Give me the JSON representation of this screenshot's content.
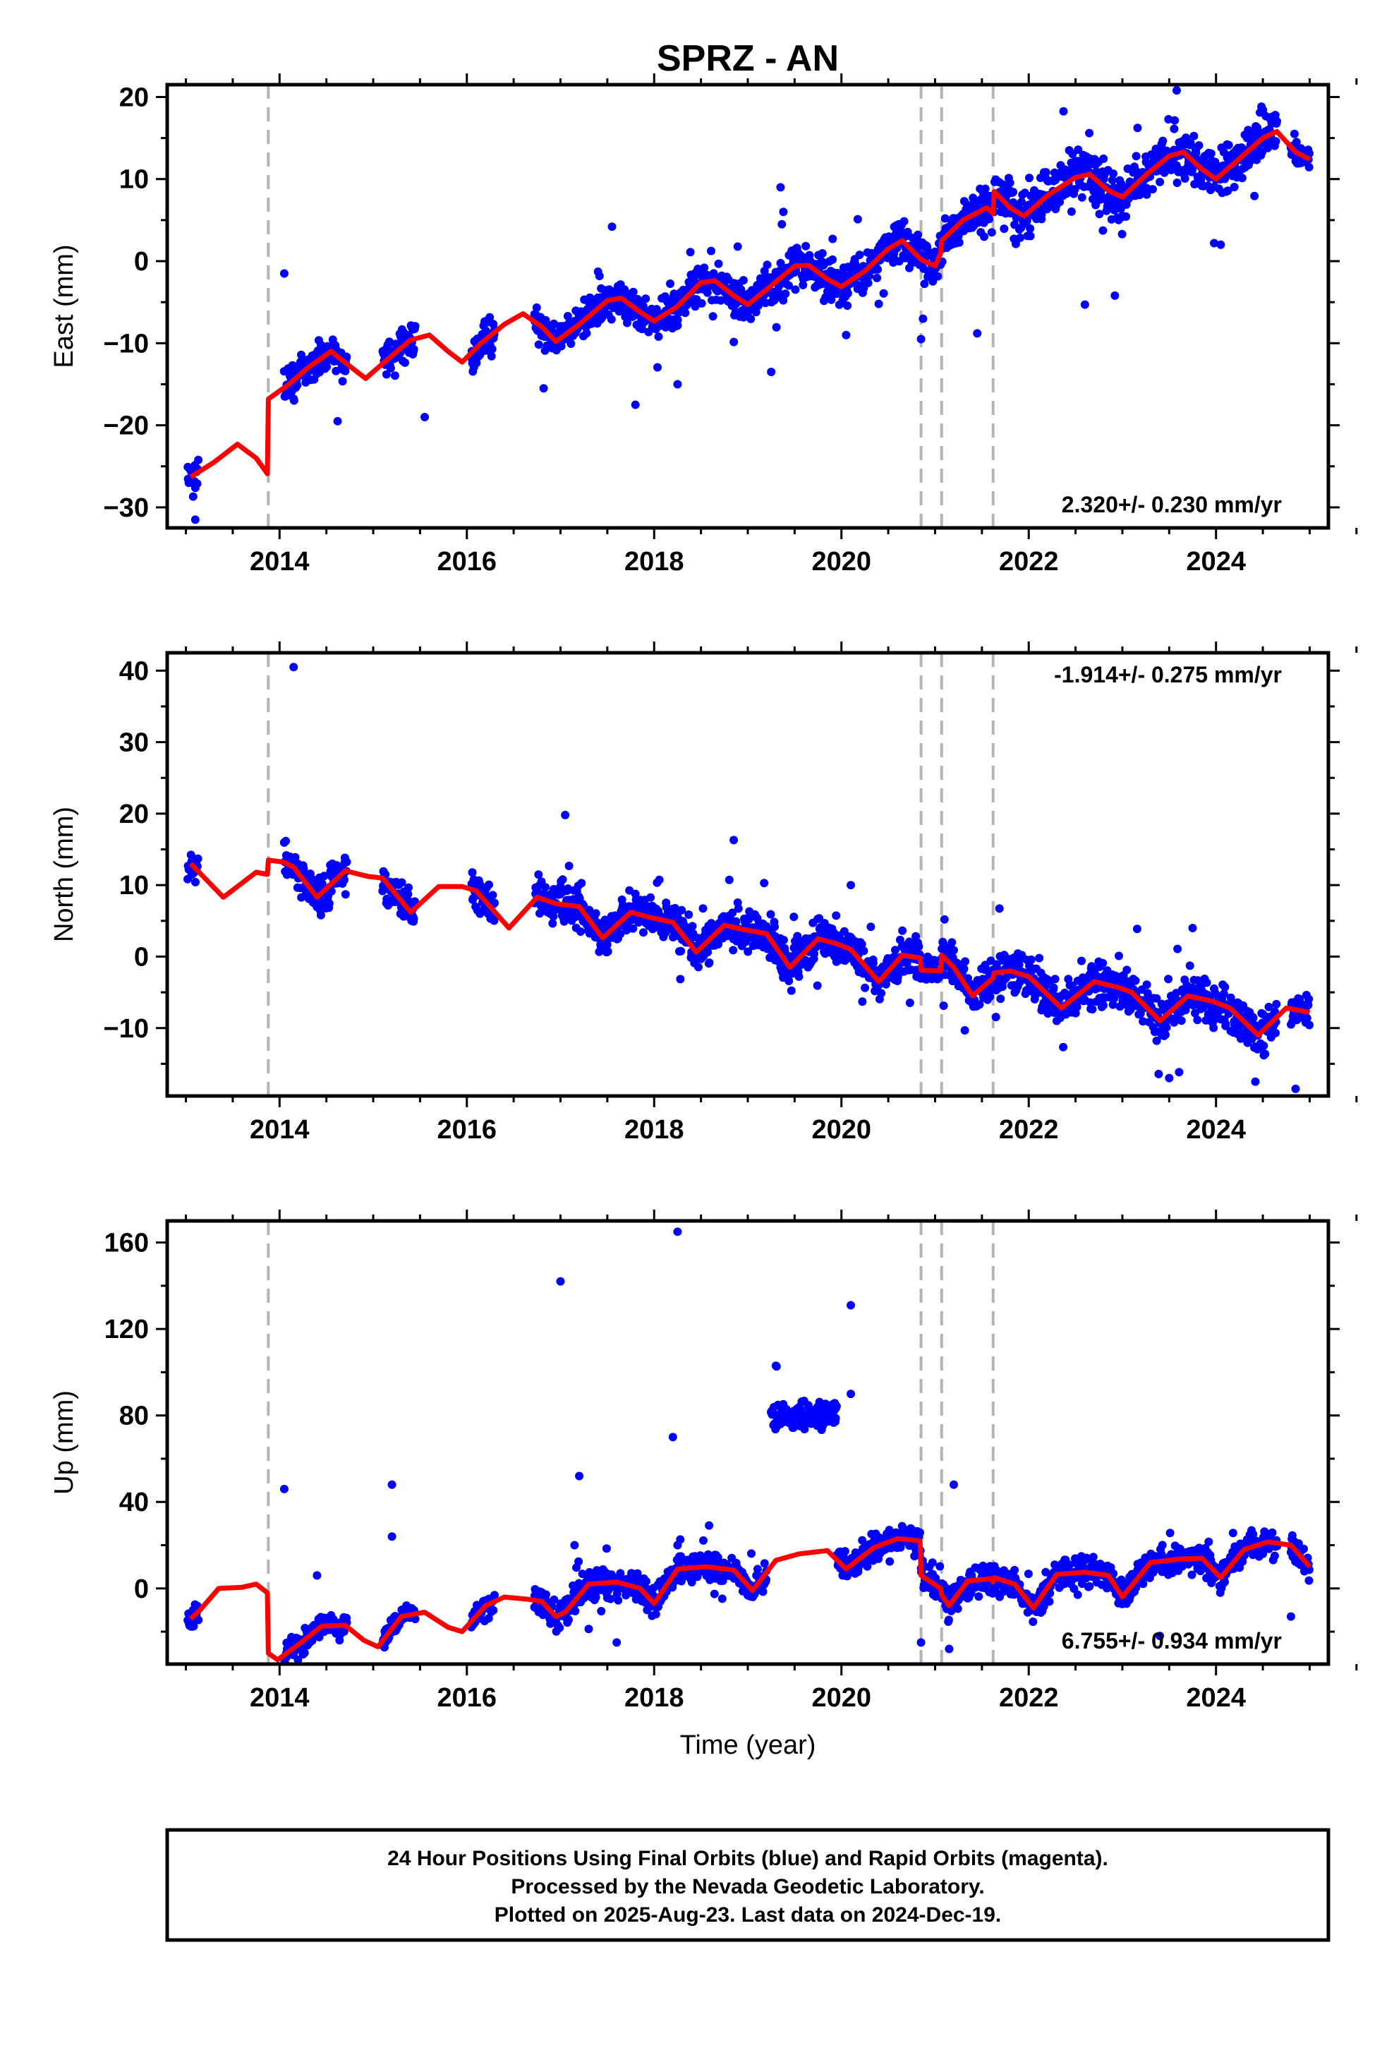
{
  "title": "SPRZ - AN",
  "xlabel": "Time (year)",
  "footer": [
    "24 Hour Positions Using Final Orbits (blue) and Rapid Orbits (magenta).",
    "Processed by the Nevada Geodetic Laboratory.",
    "Plotted on 2025-Aug-23. Last data on 2024-Dec-19."
  ],
  "colors": {
    "data": "#0000ff",
    "model": "#ff0000",
    "steps": "#b4b4b4",
    "frame": "#000000"
  },
  "chart_data": [
    {
      "type": "scatter",
      "ylabel": "East (mm)",
      "rate": "2.320+/- 0.230 mm/yr",
      "rate_position": "bottom-right",
      "xlim": [
        2012.8,
        2025.2
      ],
      "ylim": [
        -32.5,
        21.5
      ],
      "xticks": [
        2014,
        2016,
        2018,
        2020,
        2022,
        2024
      ],
      "yticks": [
        -30,
        -20,
        -10,
        0,
        10,
        20
      ],
      "step_epochs": [
        2013.88,
        2020.85,
        2021.07,
        2021.62
      ],
      "model": [
        [
          2013.05,
          -26.3
        ],
        [
          2013.3,
          -24.5
        ],
        [
          2013.55,
          -22.3
        ],
        [
          2013.75,
          -24.0
        ],
        [
          2013.87,
          -25.9
        ],
        [
          2013.88,
          -16.8
        ],
        [
          2014.1,
          -15.0
        ],
        [
          2014.3,
          -13.0
        ],
        [
          2014.55,
          -11.0
        ],
        [
          2014.75,
          -12.8
        ],
        [
          2014.92,
          -14.3
        ],
        [
          2015.15,
          -12.0
        ],
        [
          2015.4,
          -9.6
        ],
        [
          2015.6,
          -9.0
        ],
        [
          2015.8,
          -11.0
        ],
        [
          2015.95,
          -12.3
        ],
        [
          2016.15,
          -10.0
        ],
        [
          2016.4,
          -7.7
        ],
        [
          2016.6,
          -6.4
        ],
        [
          2016.8,
          -8.0
        ],
        [
          2016.95,
          -9.8
        ],
        [
          2017.2,
          -7.7
        ],
        [
          2017.5,
          -4.8
        ],
        [
          2017.65,
          -4.5
        ],
        [
          2017.85,
          -6.2
        ],
        [
          2018.0,
          -7.3
        ],
        [
          2018.25,
          -5.5
        ],
        [
          2018.5,
          -2.6
        ],
        [
          2018.65,
          -2.4
        ],
        [
          2018.85,
          -4.2
        ],
        [
          2019.0,
          -5.3
        ],
        [
          2019.25,
          -3.0
        ],
        [
          2019.5,
          -0.6
        ],
        [
          2019.65,
          -0.5
        ],
        [
          2019.85,
          -2.2
        ],
        [
          2020.0,
          -3.1
        ],
        [
          2020.25,
          -1.2
        ],
        [
          2020.5,
          1.5
        ],
        [
          2020.65,
          2.5
        ],
        [
          2020.85,
          0.2
        ],
        [
          2021.0,
          -0.6
        ],
        [
          2021.06,
          1.0
        ],
        [
          2021.07,
          2.5
        ],
        [
          2021.3,
          5.0
        ],
        [
          2021.55,
          6.5
        ],
        [
          2021.62,
          5.8
        ],
        [
          2021.63,
          8.5
        ],
        [
          2021.8,
          6.5
        ],
        [
          2021.95,
          5.5
        ],
        [
          2022.2,
          8.0
        ],
        [
          2022.5,
          10.2
        ],
        [
          2022.65,
          10.6
        ],
        [
          2022.85,
          8.6
        ],
        [
          2023.0,
          7.8
        ],
        [
          2023.25,
          10.5
        ],
        [
          2023.5,
          12.8
        ],
        [
          2023.65,
          13.3
        ],
        [
          2023.85,
          11.2
        ],
        [
          2024.0,
          10.0
        ],
        [
          2024.25,
          12.5
        ],
        [
          2024.5,
          15.0
        ],
        [
          2024.65,
          15.8
        ],
        [
          2024.85,
          13.3
        ],
        [
          2025.0,
          12.4
        ]
      ],
      "clusters": [
        [
          2013.02,
          2013.13,
          -28,
          2.2,
          0.008,
          1
        ],
        [
          2014.05,
          2014.2,
          -14,
          2.6,
          0.09,
          2
        ],
        [
          2014.2,
          2014.72,
          -11.8,
          1.8,
          0.07,
          3
        ],
        [
          2015.1,
          2015.45,
          -11,
          2.3,
          0.06,
          4
        ],
        [
          2016.05,
          2016.3,
          -9.5,
          2.4,
          0.04,
          5
        ],
        [
          2016.72,
          2017.0,
          -8,
          2.0,
          0.25,
          6
        ],
        [
          2017.0,
          2019.0,
          -4.2,
          2.2,
          0.8,
          7
        ],
        [
          2019.0,
          2020.8,
          -0.7,
          2.2,
          0.7,
          8
        ],
        [
          2020.8,
          2021.65,
          4.2,
          2.6,
          0.45,
          9
        ],
        [
          2021.65,
          2023.0,
          7.5,
          3.0,
          0.5,
          10
        ],
        [
          2023.0,
          2024.65,
          11.8,
          2.7,
          0.35,
          11
        ],
        [
          2024.8,
          2025.0,
          13.5,
          1.5,
          0.008,
          12
        ]
      ],
      "outliers": [
        [
          2013.1,
          -31.5
        ],
        [
          2014.05,
          -1.5
        ],
        [
          2014.62,
          -19.5
        ],
        [
          2015.55,
          -19.0
        ],
        [
          2016.82,
          -15.5
        ],
        [
          2017.5,
          -4.5
        ],
        [
          2017.55,
          4.2
        ],
        [
          2017.8,
          -17.5
        ],
        [
          2018.25,
          -15.0
        ],
        [
          2019.25,
          -13.5
        ],
        [
          2019.35,
          9.0
        ],
        [
          2019.38,
          6.0
        ],
        [
          2020.05,
          -9.0
        ],
        [
          2020.85,
          -9.5
        ],
        [
          2021.45,
          -8.8
        ],
        [
          2022.6,
          -5.3
        ],
        [
          2022.92,
          -4.2
        ],
        [
          2023.58,
          20.8
        ],
        [
          2023.98,
          2.2
        ],
        [
          2024.05,
          2.0
        ]
      ]
    },
    {
      "type": "scatter",
      "ylabel": "North (mm)",
      "rate": "-1.914+/- 0.275 mm/yr",
      "rate_position": "top-right",
      "xlim": [
        2012.8,
        2025.2
      ],
      "ylim": [
        -19.5,
        42.5
      ],
      "xticks": [
        2014,
        2016,
        2018,
        2020,
        2022,
        2024
      ],
      "yticks": [
        -10,
        0,
        10,
        20,
        30,
        40
      ],
      "step_epochs": [
        2013.88,
        2020.85,
        2021.07,
        2021.62
      ],
      "model": [
        [
          2013.05,
          13.0
        ],
        [
          2013.2,
          11.0
        ],
        [
          2013.4,
          8.3
        ],
        [
          2013.6,
          10.3
        ],
        [
          2013.75,
          11.8
        ],
        [
          2013.87,
          11.5
        ],
        [
          2013.88,
          13.5
        ],
        [
          2014.05,
          13.2
        ],
        [
          2014.15,
          12.5
        ],
        [
          2014.4,
          8.3
        ],
        [
          2014.7,
          12.0
        ],
        [
          2014.95,
          11.2
        ],
        [
          2015.1,
          11.0
        ],
        [
          2015.4,
          6.2
        ],
        [
          2015.7,
          9.8
        ],
        [
          2015.95,
          9.8
        ],
        [
          2016.1,
          9.2
        ],
        [
          2016.45,
          4.0
        ],
        [
          2016.75,
          8.3
        ],
        [
          2016.95,
          7.4
        ],
        [
          2017.2,
          7.0
        ],
        [
          2017.45,
          2.6
        ],
        [
          2017.75,
          6.2
        ],
        [
          2017.95,
          5.5
        ],
        [
          2018.2,
          4.8
        ],
        [
          2018.45,
          0.6
        ],
        [
          2018.75,
          4.4
        ],
        [
          2018.95,
          3.8
        ],
        [
          2019.2,
          3.2
        ],
        [
          2019.45,
          -1.5
        ],
        [
          2019.75,
          2.5
        ],
        [
          2019.95,
          1.8
        ],
        [
          2020.1,
          1.0
        ],
        [
          2020.4,
          -3.5
        ],
        [
          2020.65,
          0.2
        ],
        [
          2020.84,
          -0.2
        ],
        [
          2020.85,
          -1.9
        ],
        [
          2021.06,
          -2.0
        ],
        [
          2021.07,
          0.2
        ],
        [
          2021.2,
          -1.5
        ],
        [
          2021.4,
          -5.5
        ],
        [
          2021.62,
          -3.0
        ],
        [
          2021.63,
          -2.3
        ],
        [
          2021.8,
          -2.0
        ],
        [
          2022.0,
          -2.8
        ],
        [
          2022.35,
          -7.2
        ],
        [
          2022.7,
          -3.5
        ],
        [
          2022.95,
          -4.3
        ],
        [
          2023.1,
          -5.0
        ],
        [
          2023.4,
          -9.0
        ],
        [
          2023.7,
          -5.5
        ],
        [
          2023.95,
          -6.2
        ],
        [
          2024.15,
          -7.2
        ],
        [
          2024.45,
          -11.0
        ],
        [
          2024.75,
          -7.2
        ],
        [
          2025.0,
          -7.8
        ]
      ],
      "clusters": [
        [
          2013.02,
          2013.13,
          12,
          2.2,
          0.008,
          13
        ],
        [
          2014.05,
          2014.2,
          11,
          2.2,
          0.09,
          14
        ],
        [
          2014.2,
          2014.72,
          9.5,
          2.5,
          0.07,
          15
        ],
        [
          2015.1,
          2015.45,
          8.5,
          2.5,
          0.06,
          16
        ],
        [
          2016.05,
          2016.3,
          6.5,
          2.6,
          0.04,
          17
        ],
        [
          2016.72,
          2017.0,
          6.5,
          2.3,
          0.25,
          18
        ],
        [
          2017.0,
          2019.0,
          4.5,
          2.5,
          0.8,
          19
        ],
        [
          2019.0,
          2020.8,
          0.6,
          2.5,
          0.7,
          20
        ],
        [
          2020.8,
          2021.65,
          -2.2,
          2.6,
          0.45,
          21
        ],
        [
          2021.65,
          2023.0,
          -4.4,
          2.8,
          0.5,
          22
        ],
        [
          2023.0,
          2024.2,
          -6.0,
          2.8,
          0.4,
          23
        ],
        [
          2024.2,
          2024.65,
          -10.5,
          3.0,
          0.2,
          24
        ],
        [
          2024.8,
          2025.0,
          -7.5,
          2.0,
          0.008,
          25
        ]
      ],
      "outliers": [
        [
          2014.15,
          40.5
        ],
        [
          2017.05,
          19.8
        ],
        [
          2018.85,
          16.3
        ],
        [
          2020.1,
          10.0
        ],
        [
          2021.1,
          5.2
        ],
        [
          2023.5,
          -17.0
        ],
        [
          2023.75,
          4.0
        ],
        [
          2024.42,
          -17.5
        ],
        [
          2024.85,
          -18.5
        ]
      ]
    },
    {
      "type": "scatter",
      "ylabel": "Up (mm)",
      "rate": "6.755+/- 0.934 mm/yr",
      "rate_position": "bottom-right",
      "xlim": [
        2012.8,
        2025.2
      ],
      "ylim": [
        -35,
        170
      ],
      "xticks": [
        2014,
        2016,
        2018,
        2020,
        2022,
        2024
      ],
      "yticks": [
        0,
        40,
        80,
        120,
        160
      ],
      "step_epochs": [
        2013.88,
        2020.85,
        2021.07,
        2021.62
      ],
      "model": [
        [
          2013.05,
          -14.0
        ],
        [
          2013.15,
          -10.0
        ],
        [
          2013.35,
          0.0
        ],
        [
          2013.6,
          0.5
        ],
        [
          2013.75,
          2.0
        ],
        [
          2013.87,
          -2.0
        ],
        [
          2013.88,
          -30.0
        ],
        [
          2013.98,
          -33.0
        ],
        [
          2014.2,
          -26.0
        ],
        [
          2014.45,
          -17.5
        ],
        [
          2014.7,
          -17.0
        ],
        [
          2014.9,
          -24.0
        ],
        [
          2015.05,
          -27.0
        ],
        [
          2015.3,
          -13.0
        ],
        [
          2015.55,
          -11.0
        ],
        [
          2015.8,
          -18.0
        ],
        [
          2015.95,
          -20.0
        ],
        [
          2016.2,
          -8.0
        ],
        [
          2016.4,
          -4.0
        ],
        [
          2016.65,
          -5.0
        ],
        [
          2016.8,
          -6.0
        ],
        [
          2016.95,
          -13.0
        ],
        [
          2017.05,
          -11.0
        ],
        [
          2017.3,
          2.0
        ],
        [
          2017.6,
          3.0
        ],
        [
          2017.85,
          0.0
        ],
        [
          2018.0,
          -7.0
        ],
        [
          2018.25,
          9.0
        ],
        [
          2018.55,
          10.0
        ],
        [
          2018.85,
          8.5
        ],
        [
          2019.05,
          -1.0
        ],
        [
          2019.3,
          13.0
        ],
        [
          2019.55,
          16.0
        ],
        [
          2019.85,
          17.5
        ],
        [
          2020.05,
          9.0
        ],
        [
          2020.35,
          19.0
        ],
        [
          2020.6,
          23.0
        ],
        [
          2020.84,
          22.0
        ],
        [
          2020.85,
          6.0
        ],
        [
          2021.06,
          0.0
        ],
        [
          2021.07,
          -3.0
        ],
        [
          2021.15,
          -8.0
        ],
        [
          2021.35,
          3.5
        ],
        [
          2021.6,
          4.5
        ],
        [
          2021.62,
          3.0
        ],
        [
          2021.63,
          5.0
        ],
        [
          2021.85,
          2.0
        ],
        [
          2022.05,
          -9.0
        ],
        [
          2022.3,
          6.5
        ],
        [
          2022.6,
          7.5
        ],
        [
          2022.85,
          6.0
        ],
        [
          2023.0,
          -4.0
        ],
        [
          2023.3,
          12.0
        ],
        [
          2023.6,
          13.5
        ],
        [
          2023.85,
          14.0
        ],
        [
          2024.05,
          5.0
        ],
        [
          2024.3,
          18.0
        ],
        [
          2024.55,
          21.5
        ],
        [
          2024.8,
          20.0
        ],
        [
          2025.0,
          10.0
        ]
      ],
      "clusters": [
        [
          2013.02,
          2013.13,
          -9,
          4,
          0.008,
          26
        ],
        [
          2014.05,
          2014.2,
          -14,
          5,
          0.09,
          27
        ],
        [
          2014.2,
          2014.72,
          -14,
          5,
          0.07,
          28
        ],
        [
          2015.1,
          2015.45,
          -8,
          5,
          0.06,
          29
        ],
        [
          2016.05,
          2016.3,
          -10,
          5,
          0.04,
          30
        ],
        [
          2016.72,
          2017.0,
          -6,
          6,
          0.25,
          31
        ],
        [
          2017.0,
          2019.2,
          -6,
          6,
          0.8,
          32
        ],
        [
          2019.25,
          2019.95,
          80,
          6,
          0.3,
          33
        ],
        [
          2019.95,
          2020.8,
          -2,
          6,
          0.5,
          34
        ],
        [
          2020.8,
          2021.65,
          -2,
          7,
          0.4,
          35
        ],
        [
          2021.65,
          2023.0,
          5,
          6,
          0.5,
          36
        ],
        [
          2023.0,
          2024.65,
          12,
          6,
          0.4,
          37
        ],
        [
          2024.8,
          2025.0,
          8,
          6,
          0.008,
          38
        ]
      ],
      "outliers": [
        [
          2014.05,
          46
        ],
        [
          2014.4,
          6
        ],
        [
          2015.2,
          48
        ],
        [
          2015.2,
          24
        ],
        [
          2017.0,
          142
        ],
        [
          2017.2,
          52
        ],
        [
          2017.15,
          20
        ],
        [
          2017.6,
          -25
        ],
        [
          2018.2,
          70
        ],
        [
          2018.25,
          165
        ],
        [
          2018.25,
          20
        ],
        [
          2019.3,
          103
        ],
        [
          2020.1,
          131
        ],
        [
          2020.1,
          90
        ],
        [
          2020.85,
          -25
        ],
        [
          2021.2,
          48
        ],
        [
          2021.15,
          -28
        ],
        [
          2023.4,
          -22
        ],
        [
          2024.8,
          -13
        ]
      ]
    }
  ]
}
